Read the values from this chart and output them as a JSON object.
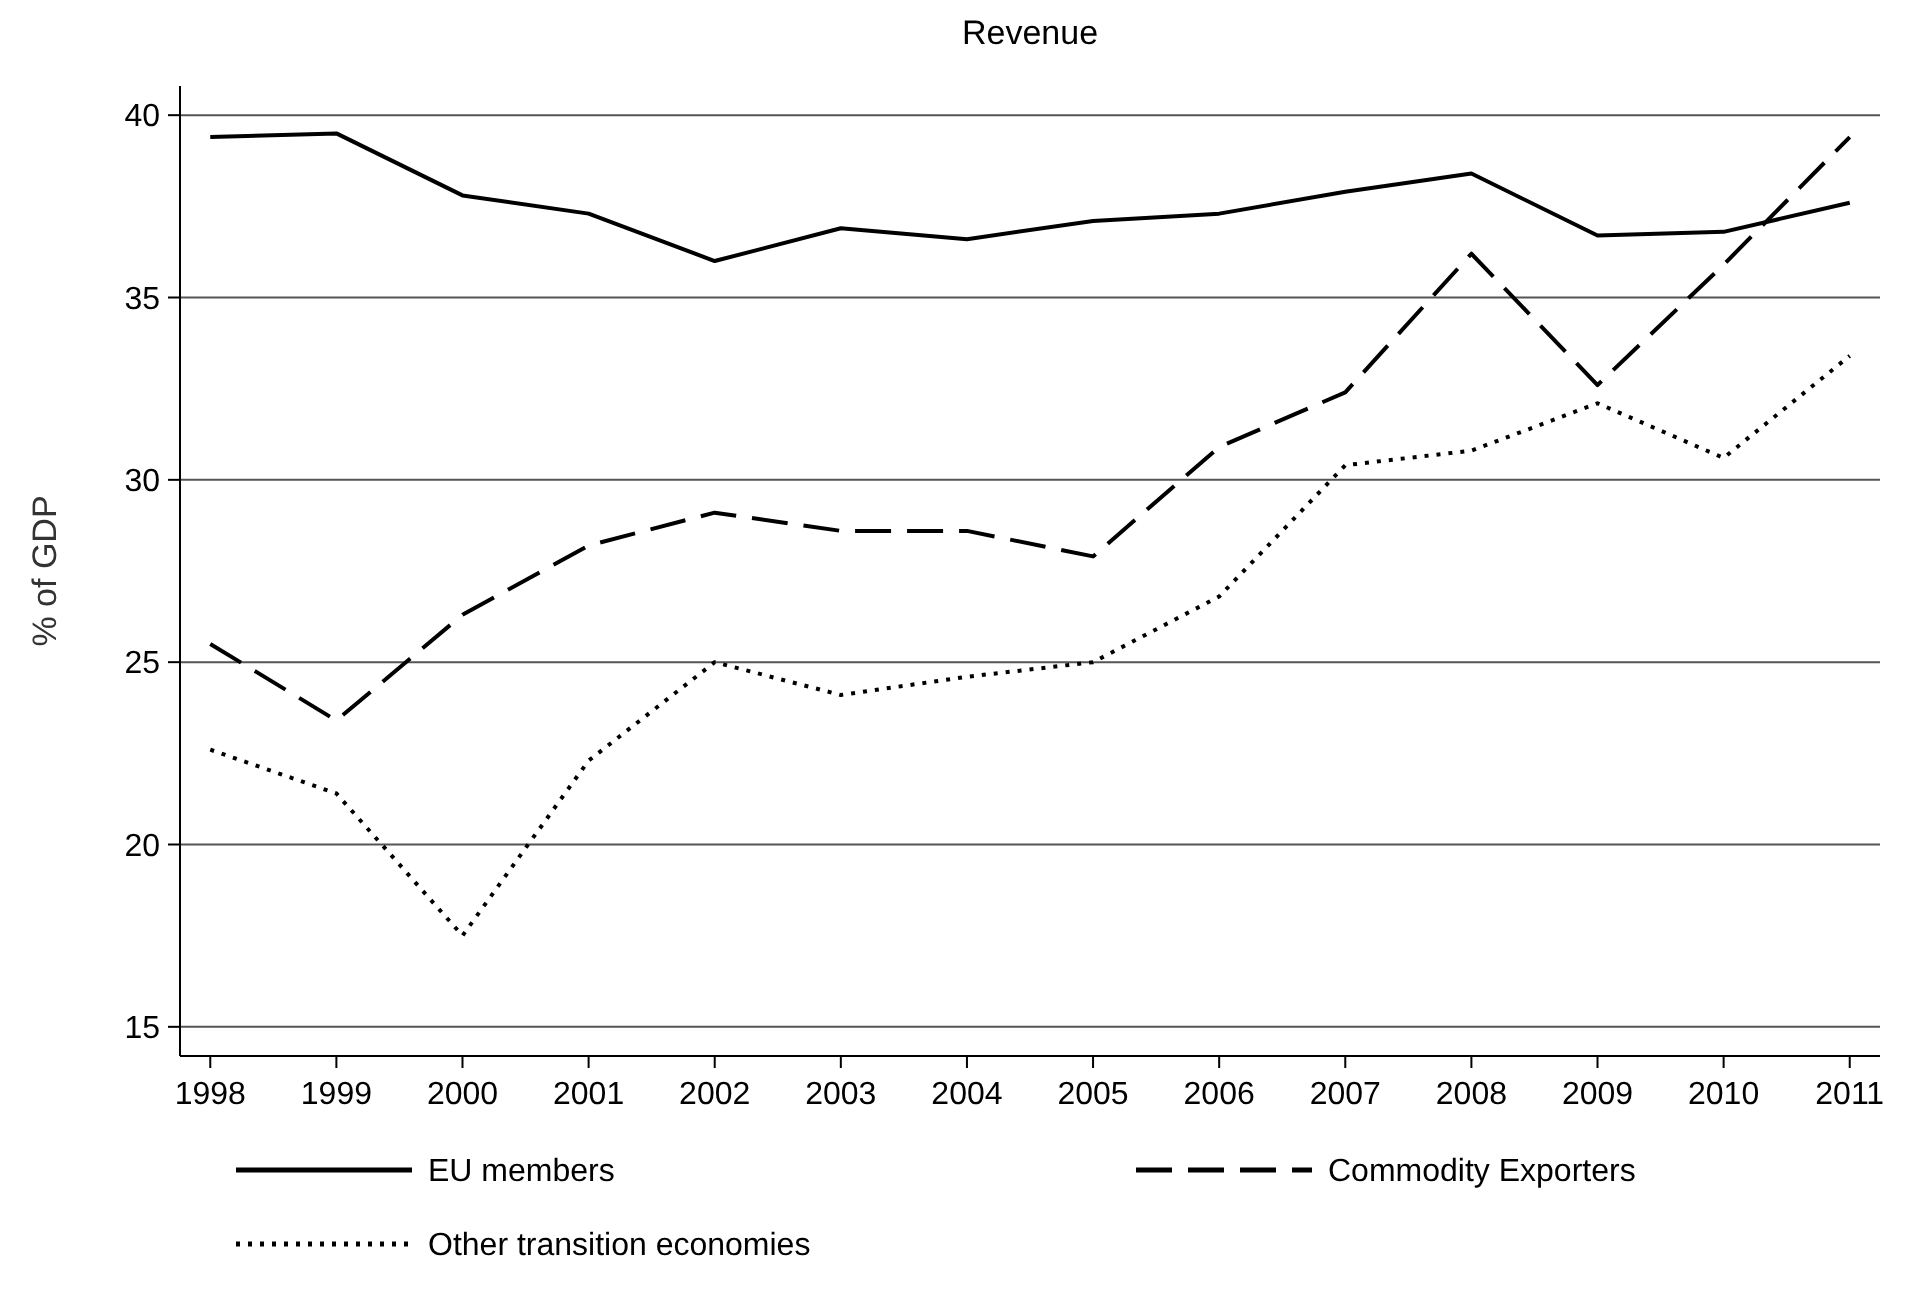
{
  "chart_data": {
    "type": "line",
    "title": "Revenue",
    "ylabel": "% of GDP",
    "categories": [
      "1998",
      "1999",
      "2000",
      "2001",
      "2002",
      "2003",
      "2004",
      "2005",
      "2006",
      "2007",
      "2008",
      "2009",
      "2010",
      "2011"
    ],
    "series": [
      {
        "name": "EU members",
        "color": "#000000",
        "line_style": "solid",
        "values": [
          39.4,
          39.5,
          37.8,
          37.3,
          36.0,
          36.9,
          36.6,
          37.1,
          37.3,
          37.9,
          38.4,
          36.7,
          36.8,
          37.6
        ]
      },
      {
        "name": "Commodity Exporters",
        "color": "#000000",
        "line_style": "dashed",
        "values": [
          25.5,
          23.4,
          26.3,
          28.2,
          29.1,
          28.6,
          28.6,
          27.9,
          30.9,
          32.4,
          36.2,
          32.6,
          35.9,
          39.4
        ]
      },
      {
        "name": "Other transition economies",
        "color": "#000000",
        "line_style": "dotted",
        "values": [
          22.6,
          21.4,
          17.5,
          22.3,
          25.0,
          24.1,
          24.6,
          25.0,
          26.8,
          30.4,
          30.8,
          32.1,
          30.6,
          33.4
        ]
      }
    ],
    "ylim": [
      14.2,
      40.8
    ],
    "yticks": [
      15,
      20,
      25,
      30,
      35,
      40
    ],
    "grid": "y",
    "legend": "bottom"
  }
}
